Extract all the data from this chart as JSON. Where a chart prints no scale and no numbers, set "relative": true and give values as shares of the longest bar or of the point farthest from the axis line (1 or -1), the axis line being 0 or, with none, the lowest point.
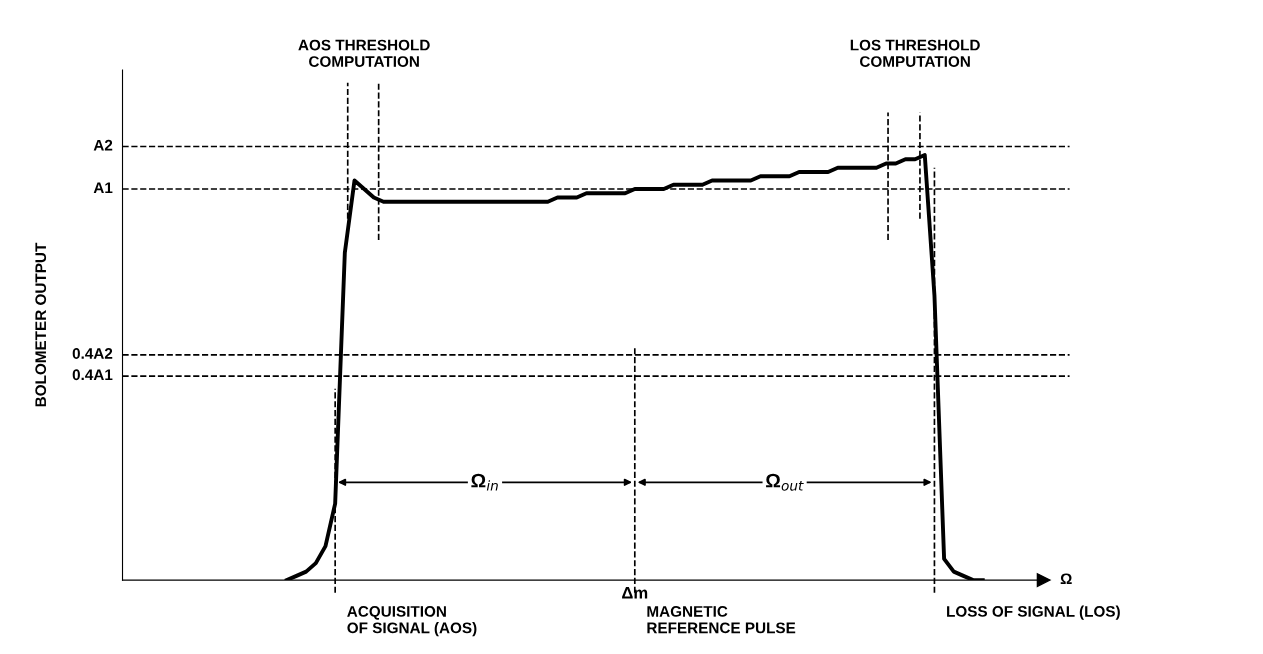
{
  "chart_data": {
    "type": "line",
    "relative": true,
    "xlabel": "Ω",
    "color": "#000000",
    "marker": "none",
    "line_style": "solid",
    "categories": [
      null,
      null,
      null,
      null,
      null,
      null,
      null,
      null,
      null,
      null,
      null,
      null,
      null,
      null,
      null,
      null,
      null,
      null,
      null,
      null,
      null,
      null,
      null,
      null,
      null,
      null,
      null,
      null,
      null,
      null,
      null,
      null,
      null,
      null,
      null,
      null,
      null,
      null,
      null,
      null,
      null,
      null,
      null,
      null,
      null,
      null,
      null,
      null,
      null,
      null,
      null,
      null,
      null,
      null,
      null,
      null,
      null,
      null,
      null,
      null,
      null,
      null,
      null,
      null,
      null,
      null,
      null,
      null,
      null,
      null,
      null,
      null,
      null
    ],
    "values": [
      0,
      0.01,
      0.02,
      0.04,
      0.08,
      0.18,
      0.77,
      0.94,
      0.92,
      0.9,
      0.89,
      0.89,
      0.89,
      0.89,
      0.89,
      0.89,
      0.89,
      0.89,
      0.89,
      0.89,
      0.89,
      0.89,
      0.89,
      0.89,
      0.89,
      0.89,
      0.89,
      0.89,
      0.9,
      0.9,
      0.9,
      0.91,
      0.91,
      0.91,
      0.91,
      0.91,
      0.92,
      0.92,
      0.92,
      0.92,
      0.93,
      0.93,
      0.93,
      0.93,
      0.94,
      0.94,
      0.94,
      0.94,
      0.94,
      0.95,
      0.95,
      0.95,
      0.95,
      0.96,
      0.96,
      0.96,
      0.96,
      0.97,
      0.97,
      0.97,
      0.97,
      0.97,
      0.98,
      0.98,
      0.99,
      0.99,
      1,
      0.67,
      0.05,
      0.02,
      0.01,
      0,
      0
    ],
    "ref_lines": [
      {
        "axis": "y",
        "value": 1.02,
        "label": "A2",
        "line_style": "dashed"
      },
      {
        "axis": "y",
        "value": 0.92,
        "label": "A1",
        "line_style": "dashed"
      },
      {
        "axis": "y",
        "value": 0.53,
        "label": "0.4A2",
        "line_style": "dashed"
      },
      {
        "axis": "y",
        "value": 0.48,
        "label": "0.4A1",
        "line_style": "dashed"
      }
    ],
    "annotations": [
      "AOS THRESHOLD\nCOMPUTATION",
      "LOS THRESHOLD\nCOMPUTATION",
      "Ω$_{in}$",
      "Ω$_{out}$",
      "Δm",
      "ACQUISITION\nOF SIGNAL (AOS)",
      "MAGNETIC\nREFERENCE PULSE",
      "LOSS OF SIGNAL (LOS)",
      "BOLOMETER OUTPUT"
    ]
  }
}
